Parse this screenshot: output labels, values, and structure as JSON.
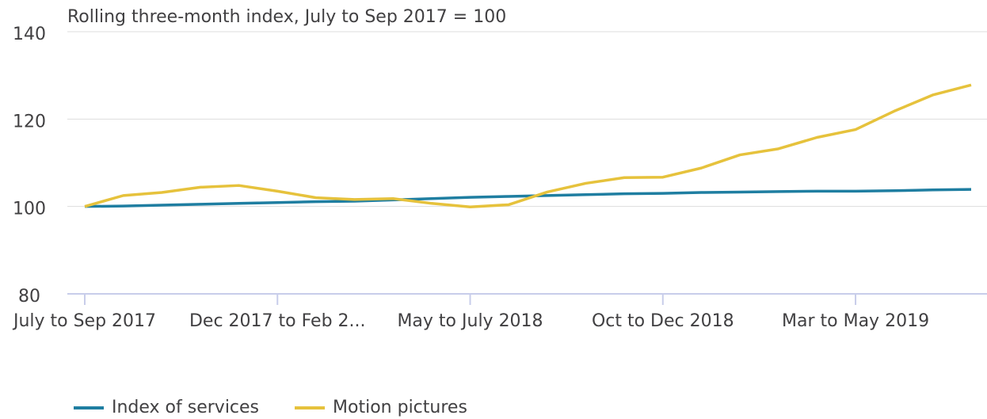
{
  "chart_data": {
    "type": "line",
    "subtitle": "Rolling three-month index, July to Sep 2017 = 100",
    "categories": [
      "July to Sep 2017",
      null,
      null,
      null,
      null,
      "Dec 2017 to Feb 2...",
      null,
      null,
      null,
      null,
      "May to July 2018",
      null,
      null,
      null,
      null,
      "Oct to Dec 2018",
      null,
      null,
      null,
      null,
      "Mar to May 2019",
      null,
      null,
      null
    ],
    "series": [
      {
        "name": "Index of services",
        "color": "#1f7ea1",
        "values": [
          100,
          100.1,
          100.3,
          100.5,
          100.7,
          100.9,
          101.1,
          101.2,
          101.5,
          101.8,
          102.1,
          102.3,
          102.5,
          102.7,
          102.9,
          103.0,
          103.2,
          103.3,
          103.4,
          103.5,
          103.5,
          103.6,
          103.8,
          103.9
        ]
      },
      {
        "name": "Motion pictures",
        "color": "#e6c23c",
        "values": [
          100,
          102.5,
          103.2,
          104.4,
          104.8,
          103.5,
          102,
          101.6,
          101.8,
          100.7,
          99.9,
          100.4,
          103.3,
          105.3,
          106.6,
          106.7,
          108.8,
          111.8,
          113.2,
          115.8,
          117.6,
          121.8,
          125.5,
          127.8
        ]
      }
    ],
    "ylim": [
      80,
      140
    ],
    "yticks": [
      80,
      100,
      120,
      140
    ],
    "grid": true,
    "legend": "bottom"
  }
}
